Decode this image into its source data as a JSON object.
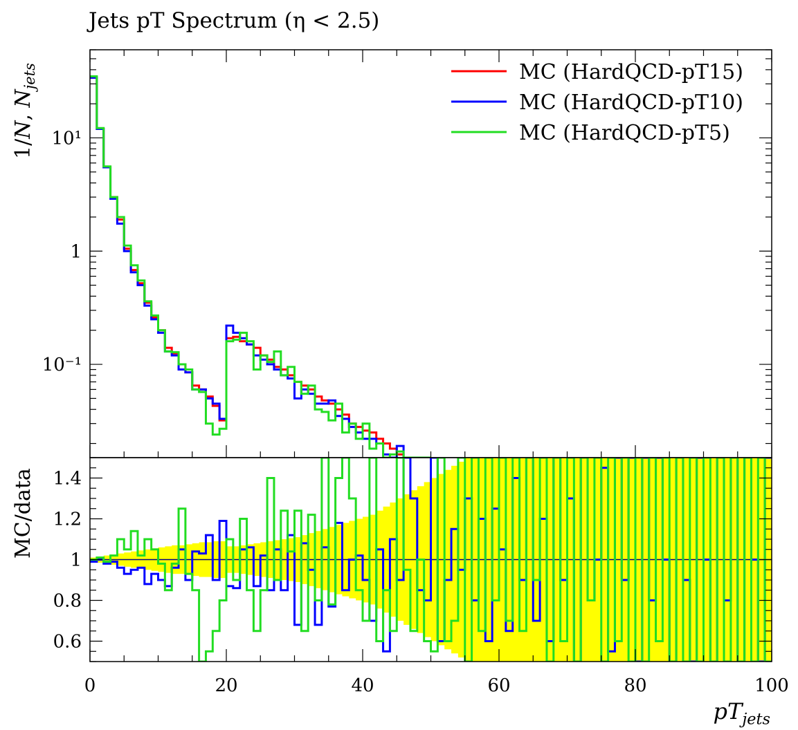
{
  "chart_data": [
    {
      "type": "line",
      "title": "Jets pT Spectrum (η < 2.5)",
      "ylabel": "1/N, N_jets",
      "xlabel": "pT_jets",
      "yscale": "log",
      "xlim": [
        0,
        100
      ],
      "ylim": [
        0.015,
        60
      ],
      "yticks": [
        {
          "value": 10,
          "label": "10¹"
        },
        {
          "value": 1,
          "label": "1"
        },
        {
          "value": 0.1,
          "label": "10⁻¹"
        }
      ],
      "legend_position": "top-right",
      "series": [
        {
          "name": "MC (HardQCD-pT15)",
          "color": "#ff0000",
          "values": [
            34,
            12,
            5.5,
            3.0,
            1.9,
            1.05,
            0.68,
            0.52,
            0.35,
            0.26,
            0.2,
            0.14,
            0.125,
            0.1,
            0.085,
            0.065,
            0.06,
            0.052,
            0.043,
            0.032,
            0.17,
            0.175,
            0.16,
            0.15,
            0.14,
            0.12,
            0.11,
            0.095,
            0.09,
            0.08,
            0.07,
            0.065,
            0.06,
            0.052,
            0.048,
            0.045,
            0.04,
            0.036,
            0.03,
            0.028,
            0.026,
            0.025,
            0.022,
            0.02,
            0.018,
            0.016,
            0.015,
            0.014,
            0.013,
            0.012
          ]
        },
        {
          "name": "MC (HardQCD-pT10)",
          "color": "#0000ff",
          "values": [
            34,
            12,
            5.5,
            2.9,
            1.75,
            1.0,
            0.65,
            0.5,
            0.33,
            0.25,
            0.19,
            0.13,
            0.12,
            0.09,
            0.085,
            0.06,
            0.06,
            0.05,
            0.045,
            0.033,
            0.22,
            0.19,
            0.17,
            0.15,
            0.12,
            0.11,
            0.1,
            0.09,
            0.08,
            0.075,
            0.05,
            0.06,
            0.055,
            0.045,
            0.045,
            0.048,
            0.035,
            0.033,
            0.028,
            0.025,
            0.022,
            0.022,
            0.02,
            0.016,
            0.015,
            0.019,
            0.014,
            0.013,
            0.012,
            0.011
          ]
        },
        {
          "name": "MC (HardQCD-pT5)",
          "color": "#22dd22",
          "values": [
            35,
            12.2,
            5.6,
            3.0,
            2.0,
            1.12,
            0.75,
            0.55,
            0.36,
            0.27,
            0.2,
            0.13,
            0.128,
            0.1,
            0.09,
            0.06,
            0.057,
            0.03,
            0.024,
            0.027,
            0.16,
            0.165,
            0.19,
            0.16,
            0.09,
            0.12,
            0.105,
            0.13,
            0.08,
            0.095,
            0.07,
            0.055,
            0.065,
            0.04,
            0.038,
            0.032,
            0.045,
            0.025,
            0.03,
            0.022,
            0.03,
            0.018,
            0.02,
            0.015,
            0.016,
            0.017,
            0.014,
            0.012,
            0.011,
            0.01
          ]
        }
      ]
    },
    {
      "type": "line",
      "ylabel": "MC/data",
      "xlabel": "pT_jets",
      "xlim": [
        0,
        100
      ],
      "ylim": [
        0.5,
        1.5
      ],
      "xticks": [
        0,
        20,
        40,
        60,
        80,
        100
      ],
      "yticks": [
        0.6,
        0.8,
        1,
        1.2,
        1.4
      ],
      "reference_line": 1,
      "uncertainty_band": {
        "color": "#ffff00",
        "halfwidths": [
          0.01,
          0.015,
          0.02,
          0.025,
          0.03,
          0.035,
          0.04,
          0.045,
          0.05,
          0.055,
          0.06,
          0.065,
          0.07,
          0.07,
          0.075,
          0.08,
          0.085,
          0.085,
          0.09,
          0.09,
          0.065,
          0.065,
          0.07,
          0.075,
          0.08,
          0.085,
          0.09,
          0.095,
          0.1,
          0.105,
          0.11,
          0.12,
          0.13,
          0.14,
          0.15,
          0.16,
          0.17,
          0.18,
          0.19,
          0.2,
          0.21,
          0.22,
          0.24,
          0.26,
          0.28,
          0.3,
          0.32,
          0.34,
          0.36,
          0.38,
          0.4,
          0.42,
          0.44,
          0.46,
          0.48,
          0.5,
          0.5,
          0.5,
          0.5,
          0.5,
          0.5,
          0.5,
          0.5,
          0.5,
          0.5,
          0.5,
          0.5,
          0.5,
          0.5,
          0.5,
          0.5,
          0.5,
          0.5,
          0.5,
          0.5,
          0.5,
          0.5,
          0.5,
          0.5,
          0.5,
          0.5,
          0.5,
          0.5,
          0.5,
          0.5,
          0.5,
          0.5,
          0.5,
          0.5,
          0.5,
          0.5,
          0.5,
          0.5,
          0.5,
          0.5,
          0.5,
          0.5,
          0.5,
          0.5,
          0.5
        ]
      },
      "series": [
        {
          "name": "MC (HardQCD-pT10)",
          "color": "#0000ff",
          "values": [
            0.99,
            1.0,
            0.98,
            0.99,
            0.96,
            0.93,
            0.95,
            0.96,
            0.88,
            0.93,
            0.9,
            0.87,
            0.96,
            1.05,
            0.9,
            1.04,
            1.03,
            1.12,
            0.9,
            1.19,
            0.87,
            0.86,
            1.05,
            1.06,
            0.87,
            1.02,
            0.85,
            1.05,
            0.85,
            1.12,
            0.68,
            1.08,
            0.95,
            0.68,
            1.06,
            0.77,
            1.18,
            0.85,
            1.0,
            1.02,
            0.9,
            0.7,
            1.05,
            0.55,
            1.1,
            0.9,
            1.5,
            1.3,
            0.85,
            0.8,
            1.5,
            0.6,
            0.9,
            1.15,
            0.95,
            1.3,
            0.8,
            1.2,
            0.6,
            1.25,
            1.05,
            0.65,
            1.4,
            0.9,
            1.5,
            0.7,
            1.2,
            0.6,
            1.5,
            0.9,
            1.3,
            0.5,
            1.5,
            0.8,
            1.0,
            1.45,
            0.55,
            1.5,
            0.9,
            1.5,
            0.5,
            1.5,
            0.8,
            1.5,
            1.0,
            0.5,
            1.5,
            0.9,
            0.5,
            1.5,
            1.0,
            0.5,
            1.5,
            0.8,
            1.5,
            0.5,
            1.5,
            1.0,
            0.5,
            1.5
          ]
        },
        {
          "name": "MC (HardQCD-pT5)",
          "color": "#22dd22",
          "values": [
            1.0,
            1.01,
            0.99,
            1.02,
            1.1,
            1.05,
            1.14,
            1.02,
            1.1,
            1.05,
            0.98,
            0.85,
            0.98,
            1.25,
            0.93,
            0.85,
            0.4,
            0.55,
            0.65,
            0.8,
            1.1,
            0.9,
            1.2,
            0.85,
            0.65,
            0.85,
            1.4,
            0.9,
            1.24,
            1.04,
            1.24,
            0.65,
            1.22,
            0.8,
            1.5,
            0.78,
            1.4,
            1.5,
            1.3,
            0.85,
            0.7,
            1.5,
            0.6,
            0.85,
            0.65,
            1.5,
            0.95,
            0.65,
            1.0,
            0.6,
            0.55,
            1.5,
            0.6,
            0.7,
            1.5,
            0.5,
            1.5,
            0.65,
            1.5,
            0.8,
            1.5,
            0.7,
            1.5,
            0.65,
            1.5,
            0.9,
            1.5,
            0.5,
            1.5,
            0.6,
            1.5,
            0.5,
            1.5,
            0.8,
            1.5,
            0.5,
            1.5,
            0.6,
            1.5,
            0.5,
            1.5,
            0.5,
            1.5,
            0.6,
            1.5,
            0.5,
            1.5,
            0.5,
            1.5,
            0.5,
            1.5,
            0.5,
            1.5,
            0.5,
            1.5,
            0.5,
            1.5,
            0.5,
            1.5,
            0.5
          ]
        }
      ]
    }
  ]
}
